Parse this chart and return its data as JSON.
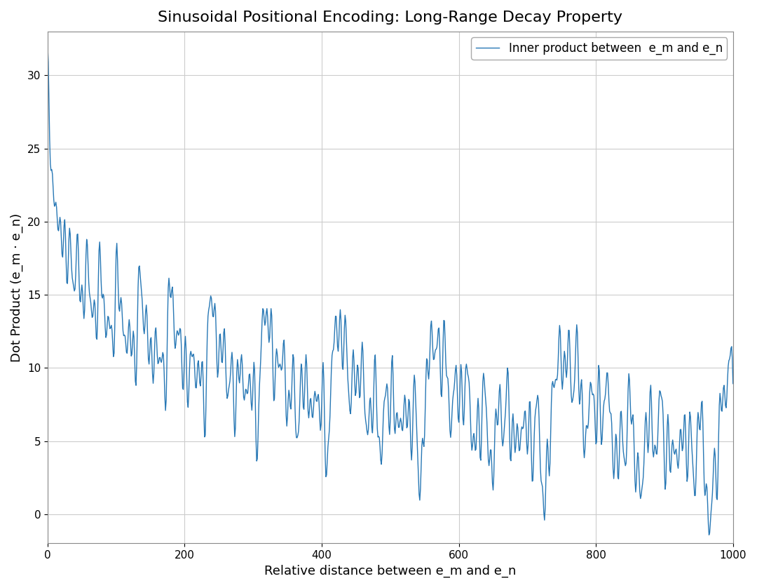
{
  "title": "Sinusoidal Positional Encoding: Long-Range Decay Property",
  "xlabel": "Relative distance between e_m and e_n",
  "ylabel": "Dot Product (e_m · e_n)",
  "legend_label": "Inner product between  e_m and e_n",
  "line_color": "#2878b5",
  "xlim": [
    0,
    1000
  ],
  "ylim": [
    -2,
    33
  ],
  "d_model": 64,
  "n_points": 1001,
  "figsize": [
    10.8,
    8.38
  ],
  "dpi": 100,
  "title_fontsize": 16,
  "axis_label_fontsize": 13,
  "legend_fontsize": 12,
  "grid_color": "#cccccc",
  "background_color": "#ffffff"
}
